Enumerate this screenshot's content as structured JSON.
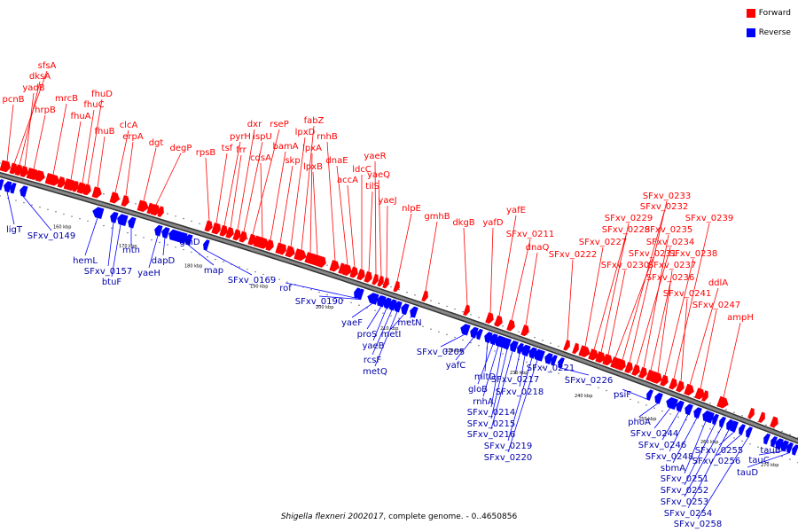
{
  "colors": {
    "forward": "#ff0000",
    "reverse": "#0000ff",
    "backbone": "#888888",
    "label_forward": "#ff0000",
    "label_reverse": "#0000aa"
  },
  "legend": {
    "forward_label": "Forward",
    "reverse_label": "Reverse"
  },
  "caption": {
    "organism": "Shigella flexneri 2002017",
    "rest": ", complete genome. - 0..4650856"
  },
  "ticks": [
    "160 kbp",
    "170 kbp",
    "180 kbp",
    "190 kbp",
    "200 kbp",
    "210 kbp",
    "220 kbp",
    "230 kbp",
    "240 kbp",
    "250 kbp",
    "260 kbp",
    "270 kbp"
  ],
  "forward_genes": [
    "sfsA",
    "dksA",
    "yadB",
    "pcnB",
    "hrpB",
    "mrcB",
    "fhuA",
    "fhuD",
    "fhuC",
    "fhuB",
    "clcA",
    "erpA",
    "dgt",
    "degP",
    "rpsB",
    "tsf",
    "pyrH",
    "frr",
    "dxr",
    "ispU",
    "rseP",
    "cdsA",
    "bamA",
    "skp",
    "lpxD",
    "fabZ",
    "lpxA",
    "lpxB",
    "rnhB",
    "dnaE",
    "accA",
    "ldcC",
    "tilS",
    "yaeR",
    "yaeQ",
    "yaeJ",
    "nlpE",
    "gmhB",
    "dkgB",
    "yafD",
    "yafE",
    "SFxv_0211",
    "dnaQ",
    "SFxv_0222",
    "SFxv_0227",
    "SFxv_0228",
    "SFxv_0229",
    "SFxv_0230",
    "SFxv_0231",
    "SFxv_0232",
    "SFxv_0233",
    "SFxv_0234",
    "SFxv_0235",
    "SFxv_0236",
    "SFxv_0237",
    "SFxv_0238",
    "SFxv_0239",
    "SFxv_0241",
    "ddlA",
    "SFxv_0247",
    "ampH"
  ],
  "reverse_genes": [
    "ligT",
    "SFxv_0149",
    "hemL",
    "SFxv_0157",
    "btuF",
    "mtn",
    "yaeH",
    "dapD",
    "glnD",
    "map",
    "SFxv_0169",
    "rof",
    "SFxv_0190",
    "yaeF",
    "proS",
    "yaeB",
    "rcsF",
    "metQ",
    "metI",
    "metN",
    "SFxv_0205",
    "yafC",
    "mltD",
    "gloB",
    "rnhA",
    "SFxv_0214",
    "SFxv_0215",
    "SFxv_0216",
    "SFxv_0217",
    "SFxv_0218",
    "SFxv_0219",
    "SFxv_0220",
    "SFxv_0221",
    "SFxv_0226",
    "psiF",
    "phoA",
    "SFxv_0244",
    "SFxv_0246",
    "SFxv_0248",
    "sbmA",
    "SFxv_0251",
    "SFxv_0252",
    "SFxv_0253",
    "SFxv_0254",
    "SFxv_0255",
    "SFxv_0256",
    "SFxv_0258",
    "tauB",
    "tauC",
    "tauD"
  ]
}
